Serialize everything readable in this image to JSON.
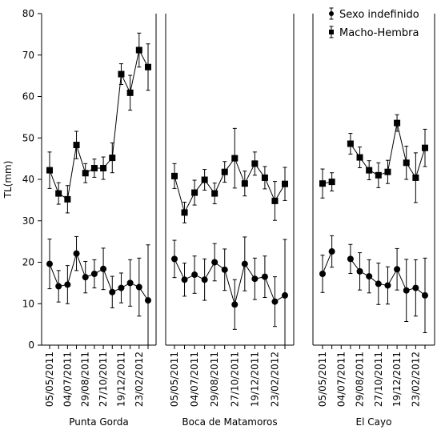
{
  "chart_data": {
    "type": "line",
    "ylabel": "TL(mm)",
    "ylim": [
      0,
      80
    ],
    "yticks": [
      0,
      10,
      20,
      30,
      40,
      50,
      60,
      70,
      80
    ],
    "error_bars": true,
    "series": [
      {
        "name": "Sexo indefinido",
        "marker": "circle",
        "color": "#000000"
      },
      {
        "name": "Macho-Hembra",
        "marker": "square",
        "color": "#000000"
      }
    ],
    "panels": [
      {
        "label": "Punta Gorda",
        "categories": [
          "05/05/2011",
          null,
          "04/07/2011",
          null,
          "29/08/2011",
          null,
          "27/10/2011",
          null,
          "19/12/2011",
          null,
          "23/02/2012",
          null
        ],
        "values": [
          [
            19.6,
            14.2,
            14.6,
            22.1,
            16.4,
            17.2,
            18.4,
            12.8,
            13.8,
            15.0,
            14.0,
            10.8
          ],
          [
            42.2,
            36.6,
            35.2,
            48.3,
            41.5,
            42.7,
            42.7,
            45.2,
            65.4,
            60.9,
            71.2,
            67.1
          ]
        ],
        "errors": [
          [
            6.0,
            3.8,
            4.6,
            4.1,
            3.8,
            3.4,
            5.0,
            3.8,
            3.6,
            5.6,
            7.0,
            13.4
          ],
          [
            4.4,
            2.6,
            3.3,
            3.3,
            2.3,
            2.2,
            2.7,
            3.6,
            2.5,
            4.2,
            4.1,
            5.6
          ]
        ]
      },
      {
        "label": "Boca de Matamoros",
        "categories": [
          "05/05/2011",
          null,
          "04/07/2011",
          null,
          "29/08/2011",
          null,
          "27/10/2011",
          null,
          "19/12/2011",
          null,
          "23/02/2012",
          null
        ],
        "values": [
          [
            20.8,
            15.8,
            17.0,
            15.8,
            20.0,
            18.2,
            9.8,
            19.6,
            16.0,
            16.5,
            10.5,
            12.0
          ],
          [
            40.8,
            32.0,
            36.8,
            39.9,
            36.6,
            41.8,
            45.1,
            39.0,
            43.8,
            40.4,
            34.8,
            38.9
          ]
        ],
        "errors": [
          [
            4.5,
            4.0,
            4.5,
            5.0,
            4.5,
            5.0,
            6.0,
            6.5,
            5.0,
            5.0,
            6.0,
            13.5
          ],
          [
            3.0,
            2.5,
            3.0,
            2.5,
            2.5,
            2.5,
            7.2,
            3.0,
            2.8,
            2.7,
            4.7,
            4.0
          ]
        ]
      },
      {
        "label": "El Cayo",
        "categories": [
          "05/05/2011",
          null,
          "04/07/2011",
          null,
          "29/08/2011",
          null,
          "27/10/2011",
          null,
          "19/12/2011",
          null,
          "23/02/2012",
          null
        ],
        "values": [
          [
            17.2,
            22.6,
            null,
            20.8,
            17.8,
            16.6,
            14.8,
            14.4,
            18.3,
            13.2,
            13.8,
            12.0
          ],
          [
            39.0,
            39.4,
            null,
            48.6,
            45.3,
            42.2,
            41.0,
            41.8,
            53.6,
            44.0,
            40.4,
            47.6
          ]
        ],
        "errors": [
          [
            4.5,
            3.8,
            null,
            3.5,
            4.5,
            4.0,
            5.0,
            4.5,
            5.0,
            7.5,
            6.8,
            9.0
          ],
          [
            3.5,
            2.2,
            null,
            2.5,
            2.5,
            2.3,
            3.0,
            2.8,
            2.0,
            4.0,
            6.0,
            4.5
          ]
        ]
      }
    ]
  }
}
